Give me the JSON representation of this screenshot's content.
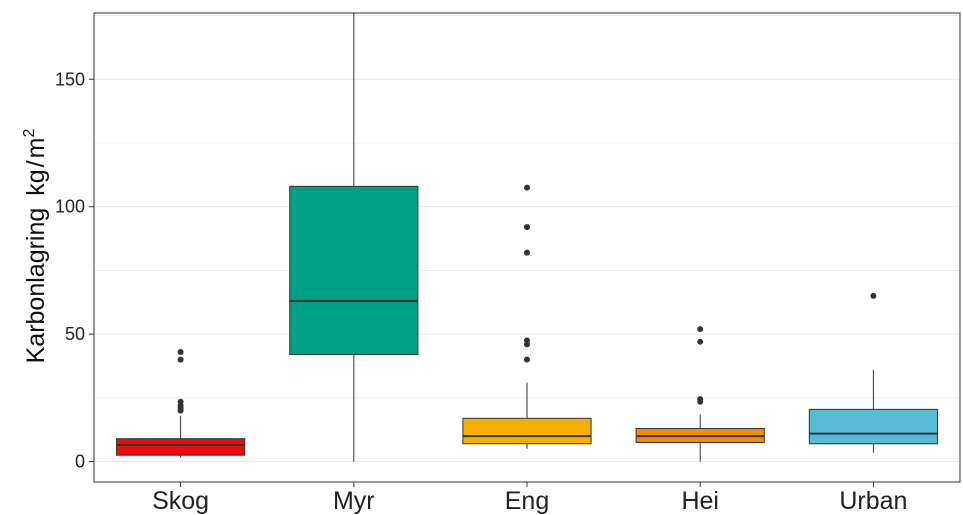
{
  "chart_data": {
    "type": "boxplot",
    "ylabel": "Karbonlagring",
    "ylabel_unit_base": "kg",
    "ylabel_unit_slash": "/",
    "ylabel_unit_m": "m",
    "ylabel_unit_exp": "2",
    "ylim": [
      -8,
      176
    ],
    "yticks": [
      0,
      50,
      100,
      150
    ],
    "ytick_labels": [
      "0",
      "50",
      "100",
      "150"
    ],
    "minor_gridlines": [
      25,
      75,
      125,
      175
    ],
    "categories": [
      "Skog",
      "Myr",
      "Eng",
      "Hei",
      "Urban"
    ],
    "boxes": [
      {
        "category": "Skog",
        "color": "#ED0D0D",
        "whisker_low": 1.5,
        "q1": 2.5,
        "median": 6.5,
        "q3": 9,
        "whisker_high": 18,
        "outliers": [
          20,
          21,
          22,
          23.5,
          40,
          43
        ]
      },
      {
        "category": "Myr",
        "color": "#00A087",
        "whisker_low": 0,
        "q1": 42,
        "median": 63,
        "q3": 108,
        "whisker_high": 176,
        "outliers": []
      },
      {
        "category": "Eng",
        "color": "#F5B000",
        "whisker_low": 5,
        "q1": 7,
        "median": 10,
        "q3": 17,
        "whisker_high": 31,
        "outliers": [
          40,
          46,
          47.5,
          82,
          92,
          107.5
        ]
      },
      {
        "category": "Hei",
        "color": "#F28E00",
        "whisker_low": 0,
        "q1": 7.5,
        "median": 10,
        "q3": 13,
        "whisker_high": 18.5,
        "outliers": [
          23.5,
          24.5,
          47,
          52
        ]
      },
      {
        "category": "Urban",
        "color": "#56BCD6",
        "whisker_low": 3.5,
        "q1": 7,
        "median": 11,
        "q3": 20.5,
        "whisker_high": 36,
        "outliers": [
          65
        ]
      }
    ]
  }
}
